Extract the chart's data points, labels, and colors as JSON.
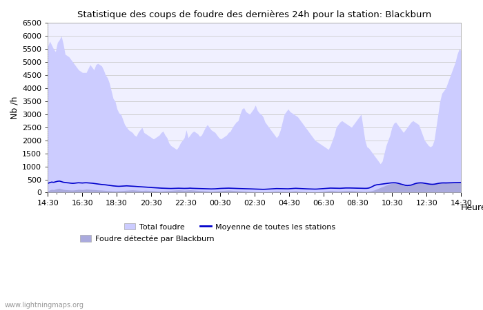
{
  "title": "Statistique des coups de foudre des dernières 24h pour la station: Blackburn",
  "xlabel": "Heure",
  "ylabel": "Nb /h",
  "watermark": "www.lightningmaps.org",
  "ylim": [
    0,
    6500
  ],
  "yticks": [
    0,
    500,
    1000,
    1500,
    2000,
    2500,
    3000,
    3500,
    4000,
    4500,
    5000,
    5500,
    6000,
    6500
  ],
  "xtick_labels": [
    "14:30",
    "16:30",
    "18:30",
    "20:30",
    "22:30",
    "00:30",
    "02:30",
    "04:30",
    "06:30",
    "08:30",
    "10:30",
    "12:30",
    "14:30"
  ],
  "bg_color": "#ffffff",
  "plot_bg_color": "#f0f0ff",
  "grid_color": "#cccccc",
  "total_foudre_color": "#ccccff",
  "local_foudre_color": "#aaaadd",
  "mean_line_color": "#0000cc",
  "total_foudre_values": [
    5600,
    5800,
    5650,
    5500,
    5400,
    5750,
    5850,
    6000,
    5700,
    5300,
    5250,
    5200,
    5100,
    5000,
    4900,
    4800,
    4700,
    4650,
    4600,
    4600,
    4600,
    4750,
    4900,
    4800,
    4700,
    4900,
    4950,
    4900,
    4850,
    4700,
    4500,
    4400,
    4200,
    3900,
    3600,
    3500,
    3200,
    3050,
    3000,
    2800,
    2600,
    2500,
    2400,
    2350,
    2300,
    2200,
    2150,
    2300,
    2400,
    2500,
    2300,
    2250,
    2200,
    2150,
    2100,
    2050,
    2100,
    2150,
    2200,
    2300,
    2350,
    2200,
    2100,
    1900,
    1800,
    1750,
    1700,
    1650,
    1750,
    1900,
    2000,
    2100,
    2400,
    2100,
    2200,
    2300,
    2350,
    2300,
    2250,
    2150,
    2200,
    2350,
    2500,
    2600,
    2500,
    2400,
    2350,
    2300,
    2200,
    2100,
    2050,
    2100,
    2150,
    2200,
    2300,
    2350,
    2500,
    2600,
    2700,
    2750,
    3000,
    3200,
    3250,
    3100,
    3050,
    3000,
    3100,
    3200,
    3350,
    3150,
    3050,
    3000,
    2900,
    2700,
    2600,
    2500,
    2400,
    2300,
    2200,
    2100,
    2200,
    2400,
    2700,
    3000,
    3100,
    3200,
    3100,
    3050,
    3000,
    2950,
    2900,
    2800,
    2700,
    2600,
    2500,
    2400,
    2300,
    2200,
    2100,
    2000,
    1950,
    1900,
    1850,
    1800,
    1750,
    1700,
    1650,
    1800,
    2000,
    2200,
    2500,
    2600,
    2700,
    2750,
    2700,
    2650,
    2600,
    2550,
    2500,
    2600,
    2700,
    2800,
    2900,
    3000,
    2500,
    2000,
    1750,
    1700,
    1600,
    1500,
    1400,
    1300,
    1200,
    1100,
    1200,
    1500,
    1800,
    2000,
    2200,
    2500,
    2650,
    2700,
    2600,
    2500,
    2400,
    2300,
    2400,
    2500,
    2600,
    2700,
    2750,
    2700,
    2650,
    2600,
    2400,
    2200,
    2000,
    1900,
    1800,
    1750,
    1800,
    2000,
    2500,
    3000,
    3500,
    3800,
    3900,
    4000,
    4200,
    4400,
    4600,
    4800,
    5000,
    5300,
    5500,
    5450
  ],
  "local_foudre_values": [
    50,
    100,
    120,
    110,
    130,
    150,
    160,
    140,
    120,
    110,
    105,
    100,
    95,
    95,
    100,
    110,
    120,
    115,
    110,
    120,
    130,
    125,
    120,
    115,
    110,
    105,
    100,
    95,
    90,
    85,
    80,
    75,
    70,
    65,
    60,
    55,
    60,
    65,
    70,
    75,
    80,
    85,
    90,
    95,
    100,
    95,
    90,
    85,
    80,
    75,
    80,
    85,
    80,
    75,
    70,
    65,
    60,
    55,
    50,
    55,
    60,
    65,
    70,
    75,
    80,
    85,
    90,
    95,
    100,
    95,
    90,
    85,
    90,
    95,
    100,
    95,
    90,
    85,
    80,
    75,
    70,
    65,
    60,
    55,
    50,
    45,
    50,
    55,
    60,
    65,
    70,
    75,
    80,
    85,
    90,
    85,
    80,
    75,
    70,
    65,
    60,
    55,
    50,
    45,
    40,
    35,
    33,
    30,
    28,
    25,
    23,
    20,
    18,
    22,
    26,
    30,
    35,
    40,
    45,
    50,
    48,
    45,
    42,
    40,
    38,
    40,
    45,
    50,
    55,
    60,
    50,
    40,
    35,
    33,
    30,
    28,
    25,
    22,
    20,
    18,
    22,
    28,
    35,
    40,
    48,
    55,
    62,
    68,
    65,
    60,
    55,
    50,
    55,
    60,
    65,
    70,
    72,
    70,
    68,
    65,
    60,
    55,
    50,
    45,
    40,
    38,
    42,
    50,
    60,
    80,
    100,
    130,
    160,
    190,
    220,
    250,
    280,
    310,
    330,
    350,
    360,
    355,
    340,
    320,
    300,
    280,
    260,
    250,
    260,
    280,
    310,
    340,
    360,
    370,
    375,
    370,
    360,
    350,
    340,
    330,
    325,
    330,
    340,
    355,
    365,
    370,
    372,
    370,
    372,
    375,
    378,
    380,
    382,
    385,
    388,
    390
  ],
  "mean_line_values": [
    350,
    380,
    400,
    390,
    410,
    430,
    440,
    420,
    395,
    385,
    375,
    368,
    358,
    352,
    358,
    368,
    375,
    370,
    365,
    372,
    375,
    370,
    365,
    358,
    348,
    338,
    328,
    318,
    308,
    302,
    295,
    285,
    275,
    265,
    255,
    248,
    242,
    238,
    242,
    248,
    252,
    256,
    252,
    248,
    242,
    238,
    232,
    228,
    222,
    218,
    212,
    208,
    202,
    198,
    192,
    188,
    182,
    178,
    172,
    168,
    165,
    162,
    160,
    158,
    155,
    158,
    160,
    162,
    165,
    162,
    160,
    158,
    160,
    162,
    168,
    162,
    160,
    158,
    155,
    152,
    150,
    148,
    145,
    142,
    140,
    138,
    140,
    142,
    148,
    152,
    158,
    160,
    162,
    165,
    168,
    165,
    162,
    160,
    158,
    155,
    152,
    150,
    148,
    145,
    142,
    140,
    138,
    135,
    132,
    130,
    128,
    125,
    123,
    125,
    130,
    134,
    138,
    142,
    148,
    152,
    150,
    148,
    145,
    142,
    140,
    142,
    148,
    152,
    158,
    162,
    158,
    152,
    148,
    145,
    142,
    140,
    138,
    135,
    133,
    131,
    133,
    138,
    142,
    148,
    152,
    158,
    165,
    170,
    168,
    165,
    162,
    160,
    162,
    165,
    170,
    174,
    175,
    174,
    172,
    170,
    168,
    165,
    162,
    160,
    158,
    160,
    162,
    172,
    198,
    238,
    275,
    295,
    305,
    315,
    325,
    335,
    345,
    355,
    365,
    372,
    375,
    372,
    358,
    338,
    318,
    298,
    278,
    268,
    275,
    285,
    312,
    338,
    358,
    368,
    372,
    368,
    355,
    342,
    330,
    320,
    315,
    320,
    332,
    348,
    360,
    368,
    370,
    368,
    370,
    372,
    375,
    378,
    380,
    382,
    385,
    388
  ]
}
